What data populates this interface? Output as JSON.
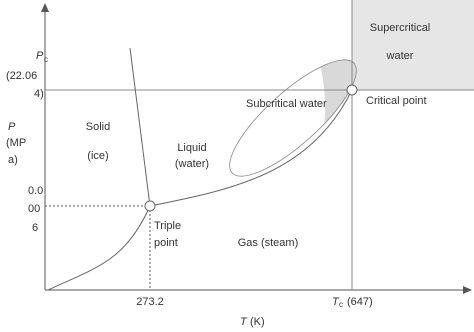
{
  "axes": {
    "y_axis": {
      "symbol": "P",
      "unit_lines": [
        "(MP",
        "a)"
      ]
    },
    "x_axis": {
      "symbol": "T",
      "unit": "(K)"
    },
    "critical_pressure": {
      "symbol": "P",
      "subscript": "c",
      "value_lines": [
        "(22.06",
        "4)"
      ]
    },
    "triple_pressure": {
      "value_lines": [
        "0.0",
        "00",
        "6"
      ]
    },
    "triple_temperature": "273.2",
    "critical_temperature": {
      "symbol": "T",
      "subscript": "c",
      "value": "(647)"
    }
  },
  "regions": {
    "solid": [
      "Solid",
      "(ice)"
    ],
    "liquid": [
      "Liquid",
      "(water)"
    ],
    "gas": "Gas (steam)",
    "supercritical": [
      "Supercritical",
      "water"
    ],
    "subcritical": "Subcritical water"
  },
  "points": {
    "triple": [
      "Triple",
      "point"
    ],
    "critical": "Critical point"
  }
}
